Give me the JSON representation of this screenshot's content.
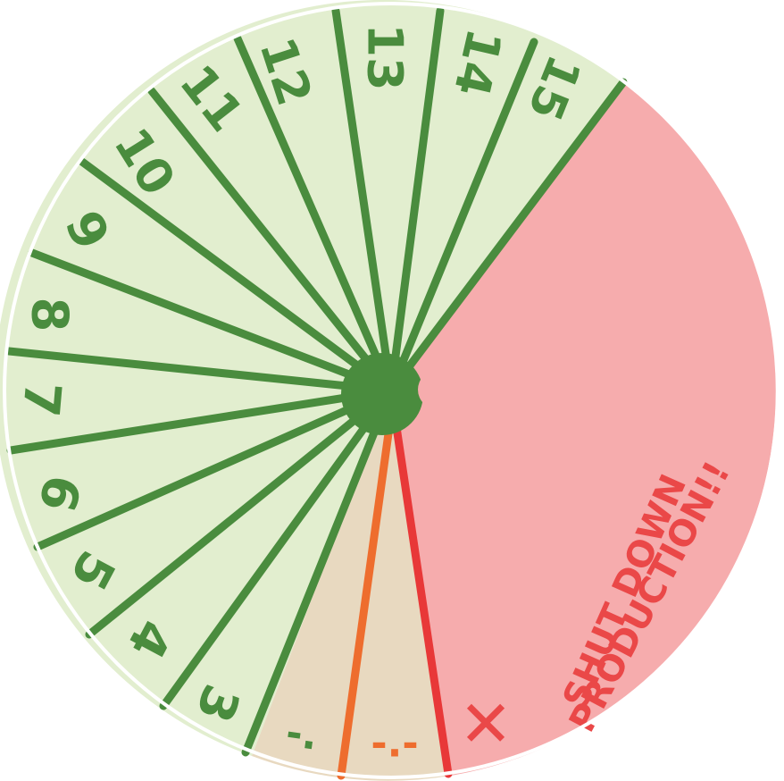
{
  "wheel": {
    "segments": [
      {
        "label": "3",
        "zone": "green"
      },
      {
        "label": "4",
        "zone": "green"
      },
      {
        "label": "5",
        "zone": "green"
      },
      {
        "label": "6",
        "zone": "green"
      },
      {
        "label": "7",
        "zone": "green"
      },
      {
        "label": "8",
        "zone": "green"
      },
      {
        "label": "9",
        "zone": "green"
      },
      {
        "label": "10",
        "zone": "green"
      },
      {
        "label": "11",
        "zone": "green"
      },
      {
        "label": "12",
        "zone": "green"
      },
      {
        "label": "13",
        "zone": "green"
      },
      {
        "label": "14",
        "zone": "green"
      },
      {
        "label": "15",
        "zone": "green"
      }
    ],
    "partial_segments": [
      {
        "label": "-.",
        "zone": "green-orange"
      },
      {
        "label": "-.-",
        "zone": "orange"
      }
    ],
    "warning": {
      "line1": "SHUT DOWN",
      "line2": "PRODUCTION!!",
      "mark": "✕"
    },
    "colors": {
      "green_fill": "#e2eecf",
      "green_line": "#4a8c3e",
      "tan_fill": "#e8d9c0",
      "orange_line": "#ee6d2e",
      "red_fill": "#f6acad",
      "red_line": "#e83838",
      "red_text": "#ea4848"
    }
  }
}
